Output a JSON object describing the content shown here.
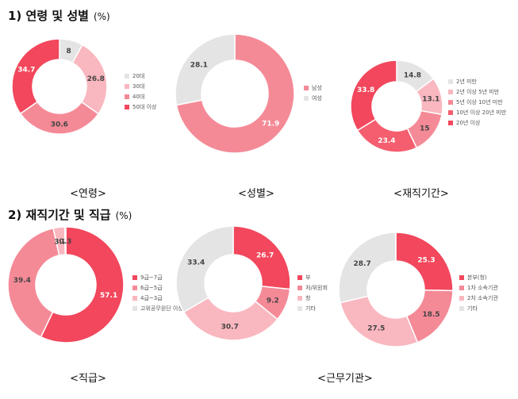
{
  "section1": {
    "title": "1) 연령 및 성별",
    "unit": "(%)"
  },
  "section2": {
    "title": "2) 재직기간 및 직급",
    "unit": "(%)"
  },
  "colors": {
    "red": "#f2475c",
    "pink": "#f58a97",
    "lightpink": "#f9b7bf",
    "gray": "#e4e4e4"
  },
  "chart_data": [
    {
      "type": "pie",
      "donut": true,
      "title": "<연령>",
      "categories": [
        "20대",
        "30대",
        "40대",
        "50대 이상"
      ],
      "values": [
        8,
        26.8,
        30.6,
        34.7
      ],
      "colors": [
        "#e4e4e4",
        "#f9b7bf",
        "#f58a97",
        "#f2475c"
      ],
      "legend": "right"
    },
    {
      "type": "pie",
      "donut": true,
      "title": "<성별>",
      "categories": [
        "남성",
        "여성"
      ],
      "values": [
        71.9,
        28.1
      ],
      "colors": [
        "#f58a97",
        "#e4e4e4"
      ],
      "legend": "right"
    },
    {
      "type": "pie",
      "donut": true,
      "title": "<재직기간>",
      "categories": [
        "2년 미만",
        "2년 이상 5년 미만",
        "5년 이상 10년 미만",
        "10년 이상 20년 미만",
        "20년 이상"
      ],
      "values": [
        14.8,
        13.1,
        15,
        23.4,
        33.8
      ],
      "colors": [
        "#e4e4e4",
        "#f9b7bf",
        "#f58a97",
        "#f45e6f",
        "#f2475c"
      ],
      "legend": "right"
    },
    {
      "type": "pie",
      "donut": true,
      "title": "<직급>",
      "categories": [
        "9급~7급",
        "6급~5급",
        "4급~3급",
        "고위공무원단 이상"
      ],
      "values": [
        57.1,
        39.4,
        3.2,
        0.3
      ],
      "colors": [
        "#f2475c",
        "#f58a97",
        "#f9b7bf",
        "#e4e4e4"
      ],
      "legend": "right"
    },
    {
      "type": "pie",
      "donut": true,
      "title": "",
      "categories": [
        "부",
        "처/위원회",
        "청",
        "기타"
      ],
      "values": [
        26.7,
        9.2,
        30.7,
        33.4
      ],
      "colors": [
        "#f2475c",
        "#f58a97",
        "#f9b7bf",
        "#e4e4e4"
      ],
      "legend": "right"
    },
    {
      "type": "pie",
      "donut": true,
      "title": "<근무기관>",
      "categories": [
        "본부(청)",
        "1차 소속기관",
        "2차 소속기관",
        "기타"
      ],
      "values": [
        25.3,
        18.5,
        27.5,
        28.7
      ],
      "colors": [
        "#f2475c",
        "#f58a97",
        "#f9b7bf",
        "#e4e4e4"
      ],
      "legend": "right"
    }
  ]
}
